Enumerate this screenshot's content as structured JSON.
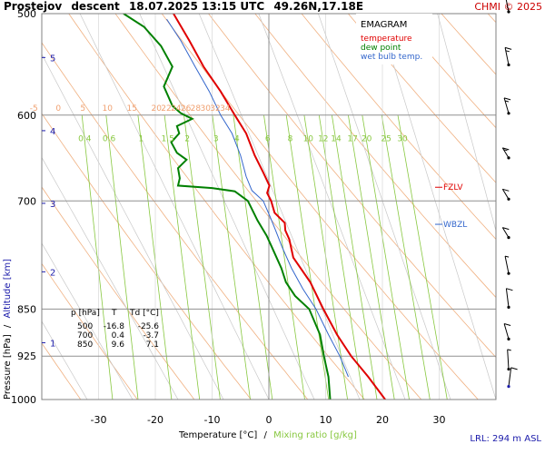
{
  "header": {
    "station": "Prostejov",
    "mode": "descent",
    "datetime": "18.07.2025 13:15 UTC",
    "location": "49.26N,17.18E",
    "copyright": "CHMI © 2025"
  },
  "legend": {
    "title": "EMAGRAM",
    "temperature": "temperature",
    "dew_point": "dew point",
    "wet_bulb": "wet bulb temp."
  },
  "axes": {
    "y_label_pressure": "Pressure [hPa]",
    "y_label_sep": "/",
    "y_label_altitude": "Altitude [km]",
    "x_label_temp": "Temperature [°C]",
    "x_label_sep": "/",
    "x_label_mixing": "Mixing ratio [g/kg]"
  },
  "footer": {
    "lrl": "LRL: 294 m ASL"
  },
  "levels": {
    "fzlv": "FZLV",
    "wbzl": "WBZL"
  },
  "table": {
    "headers": [
      "p [hPa]",
      "T",
      "Td [°C]"
    ],
    "rows": [
      [
        "500",
        "-16.8",
        "-25.6"
      ],
      [
        "700",
        "0.4",
        "-3.7"
      ],
      [
        "850",
        "9.6",
        "7.1"
      ]
    ]
  },
  "colors": {
    "temperature": "#e00000",
    "dew_point": "#008000",
    "wet_bulb": "#3366cc",
    "dry_adiabat": "#f0b080",
    "moist_adiabat": "#c8c8c8",
    "mixing_ratio": "#88c840",
    "isotherm_label": "#f0a070",
    "mixing_label": "#88c840",
    "axis_blue": "#1a1aaa",
    "title_red": "#cc0000",
    "grid": "#909090"
  },
  "chart_data": {
    "type": "line",
    "title": "EMAGRAM",
    "xlabel": "Temperature [°C]",
    "ylabel": "Pressure [hPa]",
    "xlim": [
      -40,
      40
    ],
    "ylim": [
      1000,
      500
    ],
    "y_scale": "log",
    "x_ticks": [
      -30,
      -20,
      -10,
      0,
      10,
      20,
      30
    ],
    "pressure_ticks": [
      500,
      600,
      700,
      850,
      925,
      1000
    ],
    "altitude_ticks_km": [
      {
        "label": "1",
        "p": 903
      },
      {
        "label": "2",
        "p": 795
      },
      {
        "label": "3",
        "p": 703
      },
      {
        "label": "4",
        "p": 617
      },
      {
        "label": "5",
        "p": 541
      }
    ],
    "isotherm_labels_600": [
      "-5",
      "0",
      "5",
      "10",
      "15",
      "20",
      "22",
      "24",
      "26",
      "28",
      "30",
      "32",
      "34"
    ],
    "mixing_ratio_labels": [
      "0.4",
      "0.6",
      "1",
      "1.5",
      "2",
      "3",
      "4",
      "6",
      "8",
      "10",
      "12",
      "14",
      "17",
      "20",
      "25",
      "30"
    ],
    "series": [
      {
        "name": "temperature",
        "points": [
          [
            20.5,
            1000
          ],
          [
            17.5,
            960
          ],
          [
            14.5,
            925
          ],
          [
            12.0,
            890
          ],
          [
            9.6,
            850
          ],
          [
            7.3,
            810
          ],
          [
            4.3,
            775
          ],
          [
            3.6,
            750
          ],
          [
            2.9,
            738
          ],
          [
            2.8,
            728
          ],
          [
            1.0,
            715
          ],
          [
            0.4,
            700
          ],
          [
            -0.3,
            690
          ],
          [
            0.1,
            681
          ],
          [
            -1.0,
            665
          ],
          [
            -2.5,
            645
          ],
          [
            -4.0,
            620
          ],
          [
            -6.0,
            600
          ],
          [
            -8.5,
            575
          ],
          [
            -11.5,
            550
          ],
          [
            -14.0,
            525
          ],
          [
            -16.8,
            500
          ]
        ]
      },
      {
        "name": "dew point",
        "points": [
          [
            10.8,
            1000
          ],
          [
            10.5,
            960
          ],
          [
            9.7,
            925
          ],
          [
            9.0,
            890
          ],
          [
            7.1,
            850
          ],
          [
            4.6,
            830
          ],
          [
            3.0,
            810
          ],
          [
            2.2,
            790
          ],
          [
            0.5,
            760
          ],
          [
            -0.4,
            745
          ],
          [
            -2.0,
            725
          ],
          [
            -3.7,
            700
          ],
          [
            -6.0,
            688
          ],
          [
            -10.0,
            684
          ],
          [
            -16.0,
            681
          ],
          [
            -15.7,
            672
          ],
          [
            -16.0,
            660
          ],
          [
            -14.5,
            650
          ],
          [
            -16.2,
            642
          ],
          [
            -17.2,
            630
          ],
          [
            -15.8,
            620
          ],
          [
            -16.2,
            612
          ],
          [
            -13.5,
            604
          ],
          [
            -15.5,
            598
          ],
          [
            -17.0,
            590
          ],
          [
            -18.5,
            570
          ],
          [
            -17.0,
            550
          ],
          [
            -19.0,
            530
          ],
          [
            -22.0,
            512
          ],
          [
            -25.6,
            500
          ]
        ]
      },
      {
        "name": "wet bulb temp.",
        "points": [
          [
            14.0,
            960
          ],
          [
            12.5,
            925
          ],
          [
            10.5,
            890
          ],
          [
            8.3,
            850
          ],
          [
            6.0,
            820
          ],
          [
            4.0,
            790
          ],
          [
            2.3,
            760
          ],
          [
            1.3,
            740
          ],
          [
            0.2,
            720
          ],
          [
            -1.0,
            700
          ],
          [
            -3.0,
            687
          ],
          [
            -4.0,
            670
          ],
          [
            -5.0,
            645
          ],
          [
            -6.5,
            620
          ],
          [
            -8.5,
            600
          ],
          [
            -10.5,
            575
          ],
          [
            -13.0,
            550
          ],
          [
            -15.5,
            525
          ],
          [
            -18.0,
            505
          ]
        ]
      }
    ],
    "wind_barbs": [
      {
        "p": 500,
        "dir": 330,
        "spd": 15
      },
      {
        "p": 550,
        "dir": 330,
        "spd": 15
      },
      {
        "p": 600,
        "dir": 320,
        "spd": 15
      },
      {
        "p": 650,
        "dir": 300,
        "spd": 15
      },
      {
        "p": 700,
        "dir": 300,
        "spd": 10
      },
      {
        "p": 750,
        "dir": 300,
        "spd": 10
      },
      {
        "p": 800,
        "dir": 330,
        "spd": 5
      },
      {
        "p": 850,
        "dir": 340,
        "spd": 10
      },
      {
        "p": 900,
        "dir": 320,
        "spd": 10
      },
      {
        "p": 950,
        "dir": 350,
        "spd": 5
      },
      {
        "p": 980,
        "dir": 20,
        "spd": 10
      }
    ],
    "fzlv_p": 683,
    "wbzl_p": 730
  }
}
